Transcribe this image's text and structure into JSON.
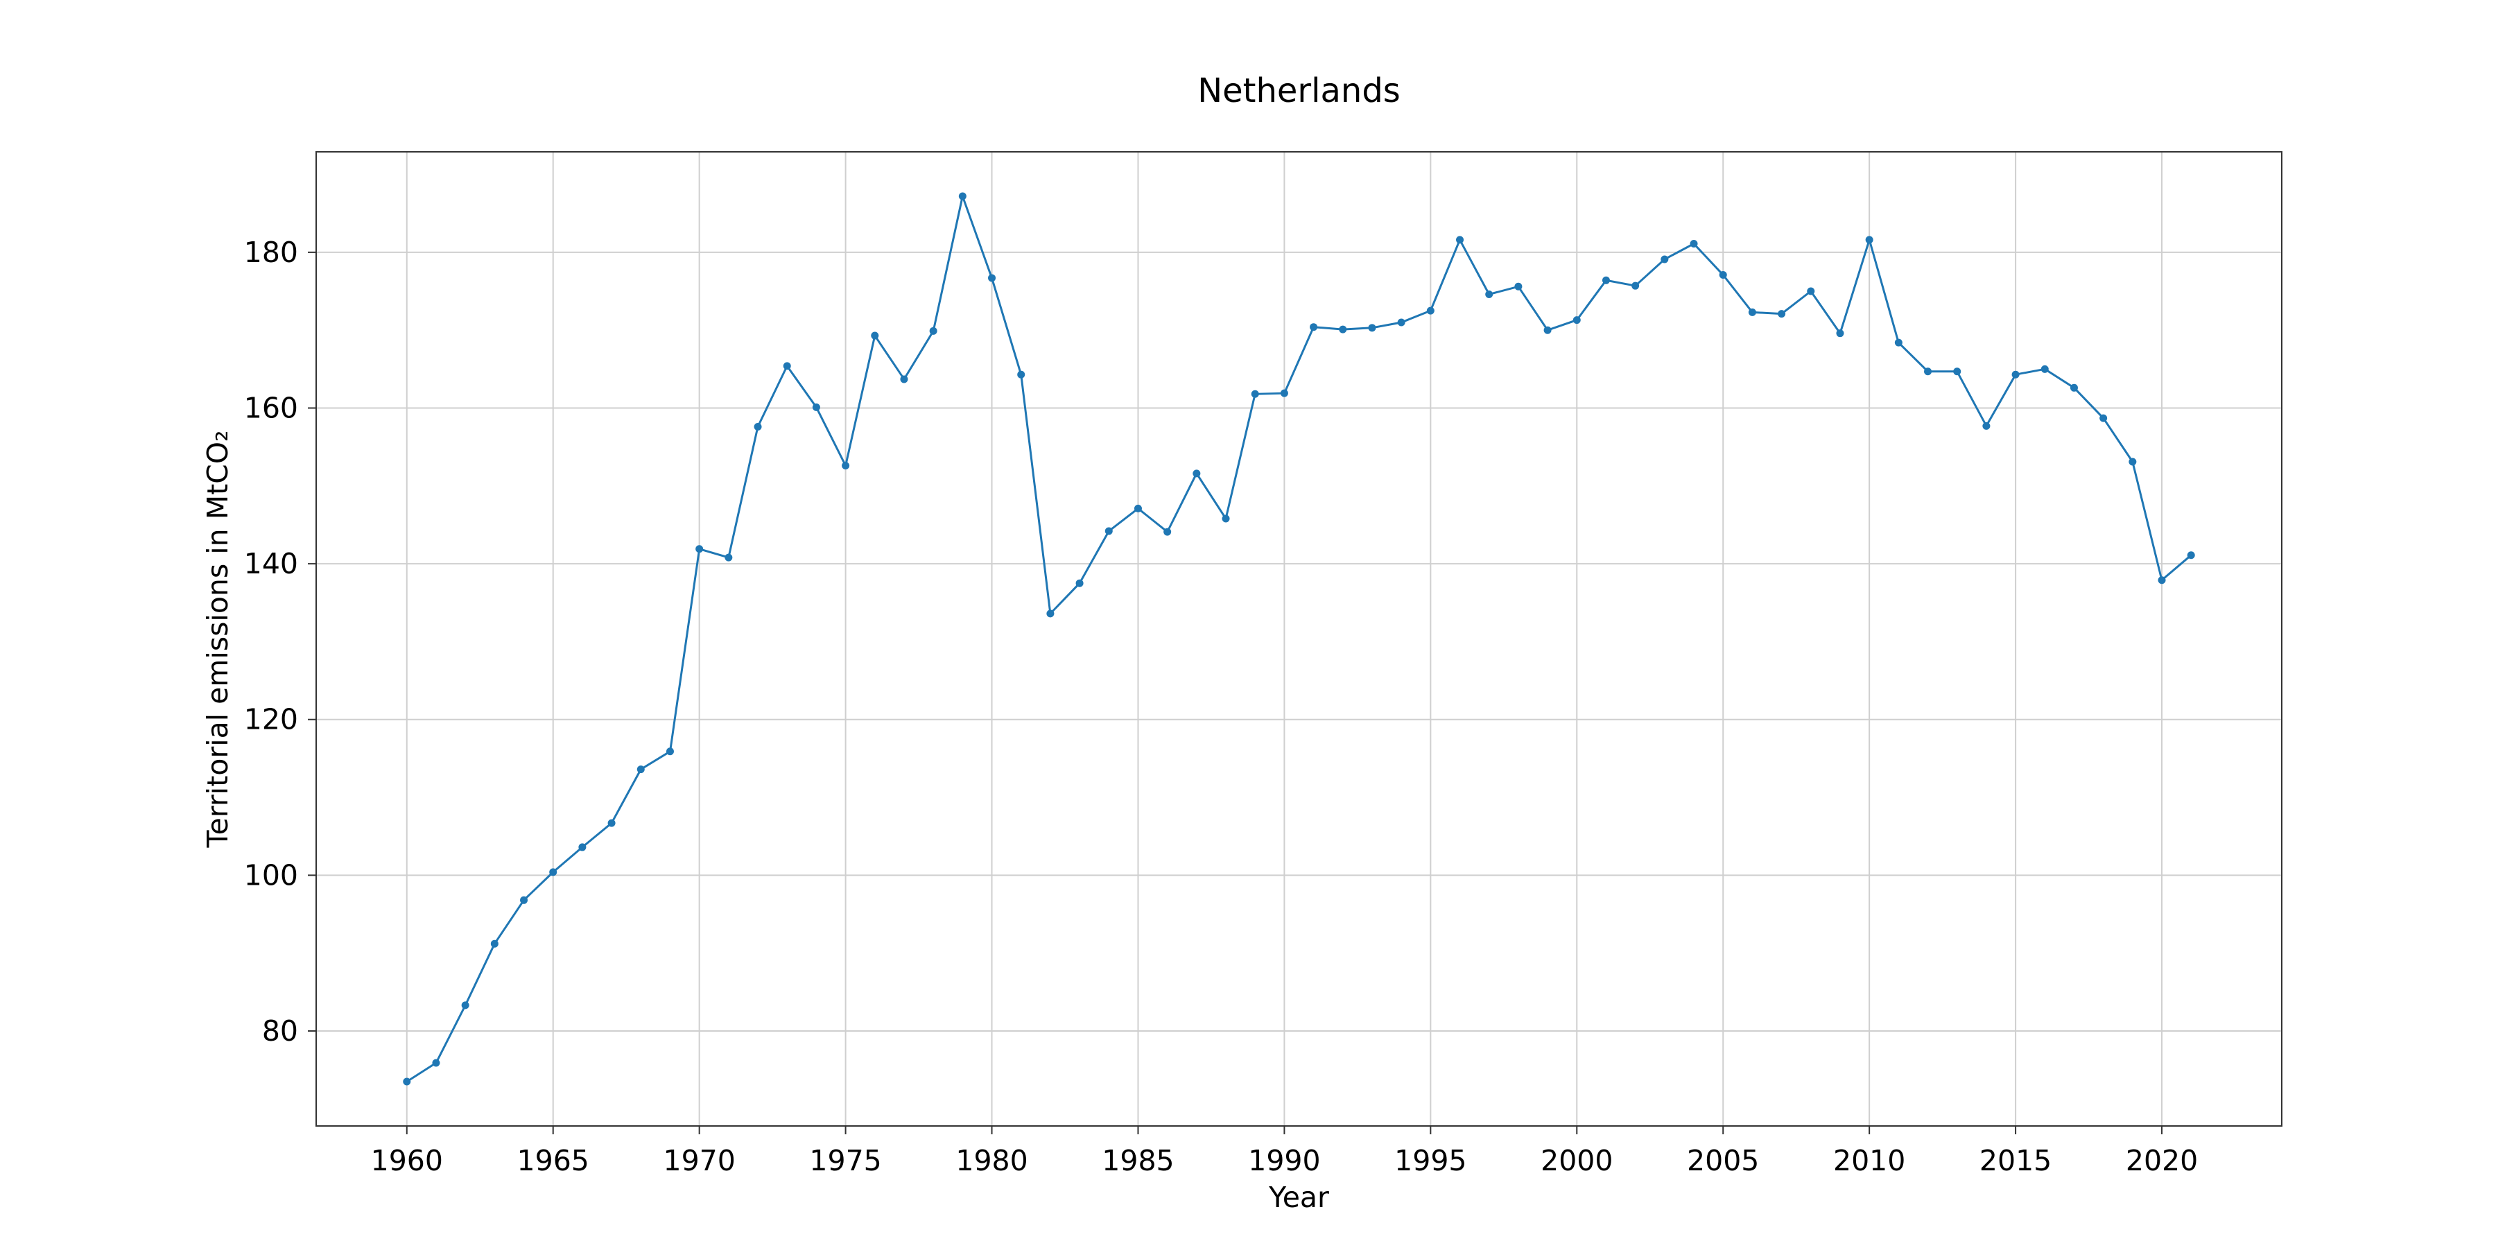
{
  "chart_data": {
    "type": "line",
    "title": "Netherlands",
    "xlabel": "Year",
    "ylabel": "Territorial emissions in MtCO₂",
    "x": [
      1960,
      1961,
      1962,
      1963,
      1964,
      1965,
      1966,
      1967,
      1968,
      1969,
      1970,
      1971,
      1972,
      1973,
      1974,
      1975,
      1976,
      1977,
      1978,
      1979,
      1980,
      1981,
      1982,
      1983,
      1984,
      1985,
      1986,
      1987,
      1988,
      1989,
      1990,
      1991,
      1992,
      1993,
      1994,
      1995,
      1996,
      1997,
      1998,
      1999,
      2000,
      2001,
      2002,
      2003,
      2004,
      2005,
      2006,
      2007,
      2008,
      2009,
      2010,
      2011,
      2012,
      2013,
      2014,
      2015,
      2016,
      2017,
      2018,
      2019,
      2020,
      2021
    ],
    "series": [
      {
        "values": [
          73.5,
          75.9,
          83.3,
          91.2,
          96.8,
          100.4,
          103.6,
          106.7,
          113.6,
          115.9,
          141.9,
          140.8,
          157.6,
          165.4,
          160.1,
          152.6,
          169.3,
          163.7,
          169.9,
          187.2,
          176.7,
          164.3,
          133.6,
          137.5,
          144.2,
          147.1,
          144.1,
          151.6,
          145.8,
          161.8,
          161.9,
          170.4,
          170.1,
          170.3,
          171.0,
          172.5,
          181.6,
          174.6,
          175.6,
          170.0,
          171.3,
          176.4,
          175.7,
          179.1,
          181.1,
          177.1,
          172.3,
          172.1,
          175.0,
          169.6,
          181.6,
          168.4,
          164.7,
          164.7,
          157.7,
          164.3,
          165.0,
          162.6,
          158.7,
          153.1,
          137.9,
          141.1
        ],
        "color": "#1f77b4"
      }
    ],
    "xticks": [
      1960,
      1965,
      1970,
      1975,
      1980,
      1985,
      1990,
      1995,
      2000,
      2005,
      2010,
      2015,
      2020
    ],
    "yticks": [
      80,
      100,
      120,
      140,
      160,
      180
    ],
    "xlim": [
      1956.9,
      2024.1
    ],
    "ylim": [
      67.8,
      192.9
    ],
    "grid": true,
    "legend": "none"
  }
}
